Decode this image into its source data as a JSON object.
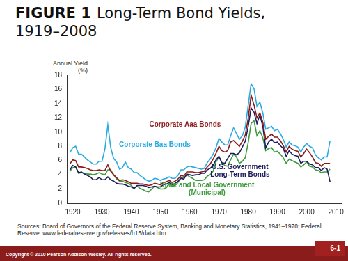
{
  "header": {
    "label": "FIGURE 1",
    "title": "Long-Term Bond Yields, 1919–2008"
  },
  "chart_data": {
    "type": "line",
    "y_label": "Annual Yield (%)",
    "x": [
      1919,
      1920,
      1921,
      1922,
      1923,
      1924,
      1925,
      1926,
      1927,
      1928,
      1929,
      1930,
      1931,
      1932,
      1933,
      1934,
      1935,
      1936,
      1937,
      1938,
      1939,
      1940,
      1941,
      1942,
      1943,
      1944,
      1945,
      1946,
      1947,
      1948,
      1949,
      1950,
      1951,
      1952,
      1953,
      1954,
      1955,
      1956,
      1957,
      1958,
      1959,
      1960,
      1961,
      1962,
      1963,
      1964,
      1965,
      1966,
      1967,
      1968,
      1969,
      1970,
      1971,
      1972,
      1973,
      1974,
      1975,
      1976,
      1977,
      1978,
      1979,
      1980,
      1981,
      1982,
      1983,
      1984,
      1985,
      1986,
      1987,
      1988,
      1989,
      1990,
      1991,
      1992,
      1993,
      1994,
      1995,
      1996,
      1997,
      1998,
      1999,
      2000,
      2001,
      2002,
      2003,
      2004,
      2005,
      2006,
      2007,
      2008
    ],
    "series": [
      {
        "name": "Corporate Baa Bonds",
        "color": "#29abe2",
        "values": [
          7.1,
          7.8,
          8.0,
          6.9,
          6.9,
          6.5,
          6.1,
          5.8,
          5.5,
          5.5,
          5.9,
          5.9,
          7.6,
          11.0,
          7.8,
          6.3,
          5.8,
          4.8,
          5.0,
          5.8,
          5.0,
          4.8,
          4.3,
          4.3,
          3.9,
          3.6,
          3.3,
          3.1,
          3.2,
          3.5,
          3.4,
          3.2,
          3.4,
          3.5,
          3.7,
          3.5,
          3.5,
          3.9,
          4.7,
          4.7,
          5.1,
          5.2,
          5.1,
          5.0,
          4.9,
          4.8,
          4.9,
          5.7,
          6.2,
          6.9,
          7.8,
          9.1,
          8.6,
          8.2,
          8.2,
          9.5,
          10.6,
          9.8,
          9.0,
          9.5,
          10.7,
          13.7,
          16.8,
          16.1,
          13.6,
          14.2,
          12.7,
          10.4,
          10.6,
          10.8,
          10.2,
          10.4,
          9.8,
          9.0,
          7.9,
          8.6,
          8.2,
          8.1,
          7.9,
          7.2,
          7.9,
          8.4,
          8.0,
          7.8,
          6.8,
          6.4,
          6.1,
          6.5,
          6.5,
          8.8
        ]
      },
      {
        "name": "Corporate Aaa Bonds",
        "color": "#8b1a1a",
        "values": [
          5.5,
          6.1,
          6.0,
          5.1,
          5.1,
          5.0,
          4.9,
          4.7,
          4.6,
          4.6,
          4.7,
          4.6,
          4.6,
          5.4,
          4.5,
          4.0,
          3.6,
          3.2,
          3.3,
          3.2,
          3.0,
          2.8,
          2.8,
          2.8,
          2.7,
          2.7,
          2.6,
          2.5,
          2.6,
          2.8,
          2.7,
          2.6,
          2.9,
          3.0,
          3.2,
          2.9,
          3.1,
          3.4,
          3.9,
          3.8,
          4.4,
          4.4,
          4.4,
          4.3,
          4.3,
          4.4,
          4.5,
          5.1,
          5.5,
          6.2,
          7.0,
          8.0,
          7.4,
          7.2,
          7.4,
          8.6,
          8.8,
          8.4,
          8.0,
          8.7,
          9.6,
          11.9,
          15.2,
          13.8,
          12.0,
          12.7,
          11.4,
          9.0,
          9.4,
          9.7,
          9.3,
          9.3,
          8.8,
          8.1,
          7.2,
          8.0,
          7.6,
          7.4,
          7.3,
          6.5,
          7.0,
          7.6,
          7.1,
          6.5,
          5.7,
          5.6,
          5.2,
          5.6,
          5.6,
          5.6
        ]
      },
      {
        "name": "U.S. Government Long-Term Bonds",
        "color": "#1c1c5e",
        "values": [
          4.7,
          5.3,
          5.1,
          4.3,
          4.4,
          4.1,
          3.9,
          3.7,
          3.3,
          3.3,
          3.6,
          3.3,
          3.3,
          3.7,
          3.3,
          3.1,
          2.8,
          2.7,
          2.7,
          2.6,
          2.4,
          2.3,
          2.1,
          2.5,
          2.5,
          2.5,
          2.4,
          2.2,
          2.3,
          2.4,
          2.3,
          2.3,
          2.6,
          2.7,
          2.9,
          2.6,
          2.8,
          3.1,
          3.5,
          3.4,
          4.1,
          4.0,
          3.9,
          4.0,
          4.0,
          4.2,
          4.2,
          4.7,
          4.9,
          5.3,
          6.1,
          6.6,
          5.7,
          5.6,
          6.3,
          7.0,
          7.0,
          6.8,
          7.1,
          7.9,
          8.7,
          10.8,
          13.4,
          12.8,
          11.2,
          12.4,
          10.8,
          7.8,
          8.6,
          9.0,
          8.5,
          8.6,
          8.1,
          7.7,
          6.6,
          7.4,
          6.9,
          6.7,
          6.6,
          5.6,
          5.9,
          5.9,
          5.5,
          5.4,
          5.0,
          5.0,
          4.6,
          5.0,
          4.8,
          3.0
        ]
      },
      {
        "name": "State and Local Government (Municipal)",
        "color": "#3d9a3d",
        "values": [
          4.5,
          5.0,
          5.1,
          4.2,
          4.3,
          4.2,
          4.1,
          4.1,
          4.0,
          4.1,
          4.3,
          4.1,
          4.0,
          4.7,
          4.7,
          4.0,
          3.4,
          3.1,
          3.1,
          2.9,
          2.8,
          2.5,
          2.1,
          2.4,
          2.1,
          1.9,
          1.7,
          1.6,
          2.0,
          2.4,
          2.2,
          2.0,
          2.0,
          2.2,
          2.7,
          2.4,
          2.5,
          2.9,
          3.6,
          3.6,
          4.0,
          3.7,
          3.5,
          3.2,
          3.2,
          3.2,
          3.3,
          3.8,
          4.0,
          4.5,
          5.8,
          6.5,
          5.7,
          5.3,
          5.2,
          6.1,
          6.9,
          6.5,
          5.6,
          5.9,
          6.4,
          8.5,
          11.2,
          11.6,
          9.5,
          10.2,
          9.2,
          7.4,
          7.7,
          7.8,
          7.2,
          7.3,
          6.9,
          6.4,
          5.6,
          6.2,
          6.0,
          5.8,
          5.6,
          5.1,
          5.4,
          5.8,
          5.2,
          5.1,
          4.7,
          4.6,
          4.3,
          4.4,
          4.4,
          4.8
        ]
      }
    ],
    "xlim": [
      1918,
      2012
    ],
    "xticks": [
      1920,
      1930,
      1940,
      1950,
      1960,
      1970,
      1980,
      1990,
      2000,
      2010
    ],
    "ylim": [
      0,
      18
    ],
    "yticks": [
      0,
      2,
      4,
      6,
      8,
      10,
      12,
      14,
      16,
      18
    ],
    "grid": false
  },
  "sources": "Sources: Board of Governors of the Federal Reserve System, Banking and Monetary Statistics, 1941–1970; Federal Reserve: www.federalreserve.gov/releases/h15/data.htm.",
  "footer": {
    "copyright": "Copyright © 2010 Pearson Addison-Wesley. All rights reserved.",
    "page": "6-1"
  }
}
